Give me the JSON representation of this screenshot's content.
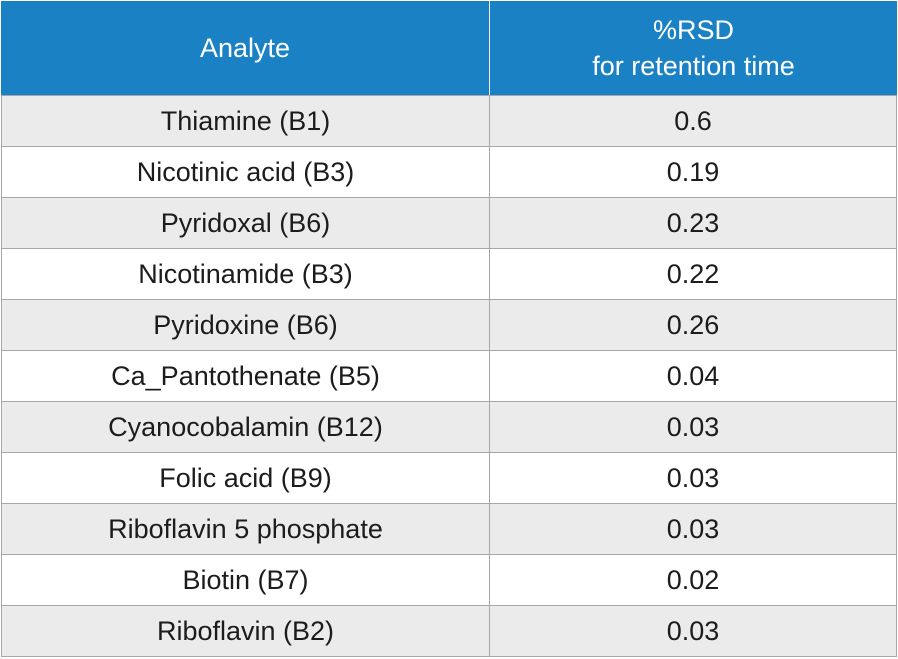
{
  "table": {
    "header": {
      "analyte": "Analyte",
      "rsd_line1": "%RSD",
      "rsd_line2": "for retention time"
    },
    "rows": [
      {
        "analyte": "Thiamine (B1)",
        "rsd": "0.6"
      },
      {
        "analyte": "Nicotinic acid (B3)",
        "rsd": "0.19"
      },
      {
        "analyte": "Pyridoxal (B6)",
        "rsd": "0.23"
      },
      {
        "analyte": "Nicotinamide (B3)",
        "rsd": "0.22"
      },
      {
        "analyte": "Pyridoxine (B6)",
        "rsd": "0.26"
      },
      {
        "analyte": "Ca_Pantothenate (B5)",
        "rsd": "0.04"
      },
      {
        "analyte": "Cyanocobalamin (B12)",
        "rsd": "0.03"
      },
      {
        "analyte": "Folic acid (B9)",
        "rsd": "0.03"
      },
      {
        "analyte": "Riboflavin 5 phosphate",
        "rsd": "0.03"
      },
      {
        "analyte": "Biotin (B7)",
        "rsd": "0.02"
      },
      {
        "analyte": "Riboflavin (B2)",
        "rsd": "0.03"
      }
    ],
    "colors": {
      "header_bg": "#1a82c4",
      "header_text": "#ffffff",
      "row_alt_bg": "#ebebeb",
      "grid_line": "#a7a7a7"
    }
  }
}
